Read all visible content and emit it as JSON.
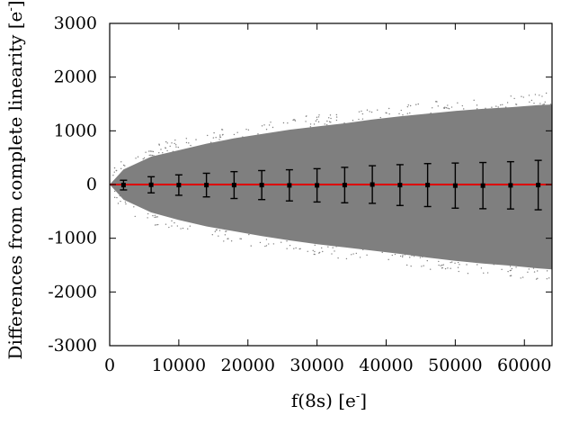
{
  "chart_data": {
    "type": "scatter",
    "title": "",
    "xlabel": {
      "base": "f(8s) [e",
      "sup": "-",
      "close": "]"
    },
    "ylabel": {
      "base": "Differences from complete linearity [e",
      "sup": "-",
      "close": "]"
    },
    "xlim": [
      0,
      64000
    ],
    "ylim": [
      -3000,
      3000
    ],
    "x_ticks": [
      0,
      10000,
      20000,
      30000,
      40000,
      50000,
      60000
    ],
    "x_tick_labels": [
      "0",
      "10000",
      "20000",
      "30000",
      "40000",
      "50000",
      "60000"
    ],
    "y_ticks": [
      -3000,
      -2000,
      -1000,
      0,
      1000,
      2000,
      3000
    ],
    "y_tick_labels": [
      "-3000",
      "-2000",
      "-1000",
      "0",
      "1000",
      "2000",
      "3000"
    ],
    "grid": false,
    "legend": "none",
    "reference_line": {
      "y": 0,
      "color": "#dd0000"
    },
    "scatter_cloud": {
      "color": "#7f7f7f",
      "envelope": {
        "x": [
          0,
          2000,
          6000,
          10000,
          14000,
          18000,
          22000,
          26000,
          30000,
          34000,
          38000,
          42000,
          46000,
          50000,
          54000,
          58000,
          62000,
          64000
        ],
        "upper": [
          0,
          280,
          520,
          640,
          760,
          860,
          940,
          1020,
          1080,
          1140,
          1210,
          1270,
          1320,
          1370,
          1410,
          1440,
          1480,
          1490
        ],
        "lower": [
          0,
          -280,
          -520,
          -660,
          -780,
          -870,
          -960,
          -1040,
          -1110,
          -1170,
          -1230,
          -1290,
          -1360,
          -1420,
          -1470,
          -1510,
          -1560,
          -1580
        ]
      }
    },
    "error_bars": {
      "color": "#000000",
      "x": [
        2000,
        6000,
        10000,
        14000,
        18000,
        22000,
        26000,
        30000,
        34000,
        38000,
        42000,
        46000,
        50000,
        54000,
        58000,
        62000
      ],
      "y": [
        -10,
        -5,
        -10,
        -10,
        -10,
        -10,
        -15,
        -15,
        -10,
        0,
        -10,
        -10,
        -20,
        -20,
        -15,
        -10
      ],
      "err": [
        90,
        150,
        190,
        220,
        250,
        270,
        290,
        310,
        330,
        350,
        380,
        400,
        420,
        430,
        440,
        460
      ]
    }
  }
}
